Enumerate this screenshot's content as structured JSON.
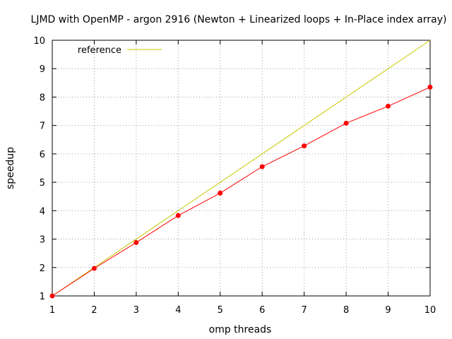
{
  "chart_data": {
    "type": "line",
    "title": "LJMD with OpenMP - argon 2916 (Newton + Linearized loops + In-Place index array)",
    "xlabel": "omp threads",
    "ylabel": "speedup",
    "xlim": [
      1,
      10
    ],
    "ylim": [
      1,
      10
    ],
    "xticks": [
      "1",
      "2",
      "3",
      "4",
      "5",
      "6",
      "7",
      "8",
      "9",
      "10"
    ],
    "yticks": [
      "1",
      "2",
      "3",
      "4",
      "5",
      "6",
      "7",
      "8",
      "9",
      "10"
    ],
    "grid": true,
    "legend_position": "top-left",
    "series": [
      {
        "name": "reference",
        "color": "#c8c800",
        "marker": "none",
        "x": [
          1,
          10
        ],
        "y": [
          1,
          10
        ]
      },
      {
        "name": "",
        "color": "#ff0000",
        "marker": "circle",
        "x": [
          1,
          2,
          3,
          4,
          5,
          6,
          7,
          8,
          9,
          10
        ],
        "y": [
          1.0,
          1.97,
          2.88,
          3.83,
          4.62,
          5.55,
          6.28,
          7.08,
          7.68,
          8.35
        ]
      }
    ]
  }
}
